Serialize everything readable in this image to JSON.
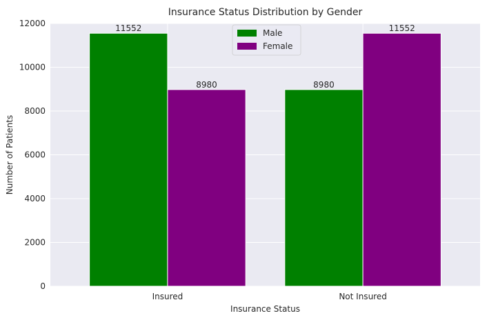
{
  "chart_data": {
    "type": "bar",
    "title": "Insurance Status Distribution by Gender",
    "xlabel": "Insurance Status",
    "ylabel": "Number of Patients",
    "categories": [
      "Insured",
      "Not Insured"
    ],
    "series": [
      {
        "name": "Male",
        "values": [
          11552,
          8980
        ],
        "color": "#008000"
      },
      {
        "name": "Female",
        "values": [
          8980,
          11552
        ],
        "color": "#800080"
      }
    ],
    "ylim": [
      0,
      12000
    ],
    "yticks": [
      0,
      2000,
      4000,
      6000,
      8000,
      10000,
      12000
    ],
    "grid": true,
    "legend_position": "top-center",
    "background": "#eaeaf2"
  }
}
